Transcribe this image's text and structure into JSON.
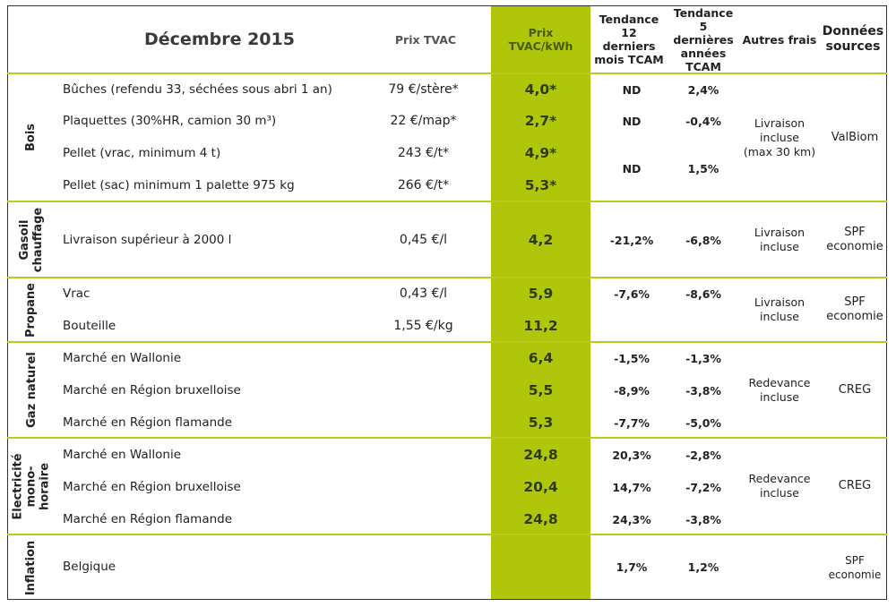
{
  "header": {
    "title": "Décembre 2015",
    "prix_tvac": "Prix TVAC",
    "prix_kwh": "Prix\nTVAC/kWh",
    "tendance_12": "Tendance\n12\nderniers\nmois TCAM",
    "tendance_5": "Tendance\n5\ndernières\nannées\nTCAM",
    "autres_frais": "Autres frais",
    "sources": "Données\nsources"
  },
  "sections": [
    {
      "label": "Bois",
      "rows": [
        {
          "desc": "Bûches (refendu 33, séchées sous abri 1 an)",
          "price": "79 €/stère*",
          "kwh": "4,0*",
          "t12": "ND",
          "t5": "2,4%"
        },
        {
          "desc": "Plaquettes (30%HR, camion 30 m³)",
          "price": "22 €/map*",
          "kwh": "2,7*",
          "t12": "ND",
          "t5": "-0,4%"
        },
        {
          "desc": "Pellet (vrac,  minimum 4 t)",
          "price": "243 €/t*",
          "kwh": "4,9*",
          "t12": "",
          "t5": ""
        },
        {
          "desc": "Pellet (sac) minimum 1 palette 975 kg",
          "price": "266 €/t*",
          "kwh": "5,3*",
          "t12": "",
          "t5": ""
        }
      ],
      "pellet_trend": {
        "t12": "ND",
        "t5": "1,5%"
      },
      "frais": "Livraison\nincluse\n(max 30 km)",
      "source": "ValBiom"
    },
    {
      "label": "Gasoil\nchauffage",
      "rows": [
        {
          "desc": "Livraison supérieur à 2000 l",
          "price": "0,45 €/l",
          "kwh": "4,2",
          "t12": "-21,2%",
          "t5": "-6,8%"
        }
      ],
      "frais": "Livraison\nincluse",
      "source": "SPF\neconomie"
    },
    {
      "label": "Propane",
      "rows": [
        {
          "desc": "Vrac",
          "price": "0,43 €/l",
          "kwh": "5,9",
          "t12": "-7,6%",
          "t5": "-8,6%"
        },
        {
          "desc": "Bouteille",
          "price": "1,55 €/kg",
          "kwh": "11,2",
          "t12": "",
          "t5": ""
        }
      ],
      "frais": "Livraison\nincluse",
      "source": "SPF\neconomie"
    },
    {
      "label": "Gaz naturel",
      "rows": [
        {
          "desc": "Marché en Wallonie",
          "price": "",
          "kwh": "6,4",
          "t12": "-1,5%",
          "t5": "-1,3%"
        },
        {
          "desc": "Marché en Région bruxelloise",
          "price": "",
          "kwh": "5,5",
          "t12": "-8,9%",
          "t5": "-3,8%"
        },
        {
          "desc": "Marché en Région flamande",
          "price": "",
          "kwh": "5,3",
          "t12": "-7,7%",
          "t5": "-5,0%"
        }
      ],
      "frais": "Redevance\nincluse",
      "source": "CREG"
    },
    {
      "label": "Electricité\nmono-\nhoraire",
      "rows": [
        {
          "desc": "Marché en Wallonie",
          "price": "",
          "kwh": "24,8",
          "t12": "20,3%",
          "t5": "-2,8%"
        },
        {
          "desc": "Marché en Région bruxelloise",
          "price": "",
          "kwh": "20,4",
          "t12": "14,7%",
          "t5": "-7,2%"
        },
        {
          "desc": "Marché en Région flamande",
          "price": "",
          "kwh": "24,8",
          "t12": "24,3%",
          "t5": "-3,8%"
        }
      ],
      "frais": "Redevance\nincluse",
      "source": "CREG"
    },
    {
      "label": "Inflation",
      "rows": [
        {
          "desc": "Belgique",
          "price": "",
          "kwh": "",
          "t12": "1,7%",
          "t5": "1,2%"
        }
      ],
      "frais": "",
      "source": "SPF\neconomie"
    }
  ]
}
